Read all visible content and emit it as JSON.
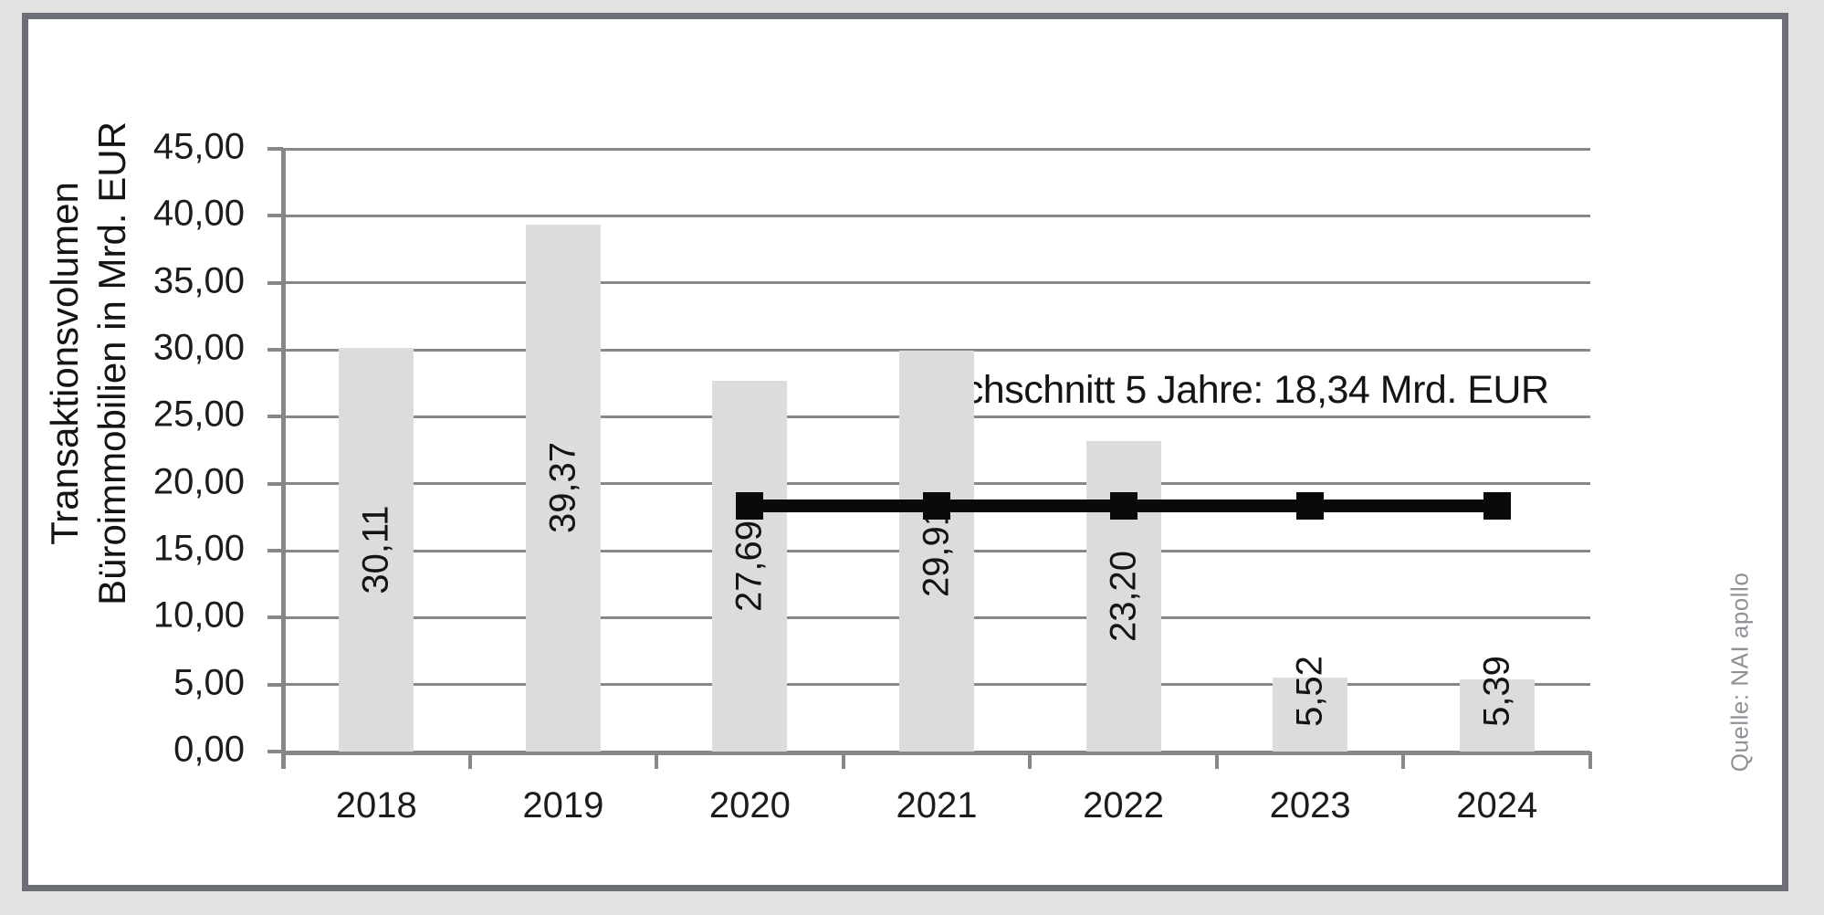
{
  "page": {
    "background_color": "#e2e2e0",
    "frame_border_color": "#6c7076",
    "plot_background": "#ffffff"
  },
  "chart_data": {
    "type": "bar",
    "title": "",
    "categories": [
      "2018",
      "2019",
      "2020",
      "2021",
      "2022",
      "2023",
      "2024"
    ],
    "series": [
      {
        "name": "Transaktionsvolumen Büroimmobilien",
        "type": "bar",
        "values": [
          30.11,
          39.37,
          27.69,
          29.91,
          23.2,
          5.52,
          5.39
        ],
        "labels": [
          "30,11",
          "39,37",
          "27,69",
          "29,91",
          "23,20",
          "5,52",
          "5,39"
        ],
        "color": "#dcdcdd",
        "label_rotation": -90
      },
      {
        "name": "Durchschnitt 5 Jahre",
        "type": "line",
        "value": 18.34,
        "span_categories": [
          "2020",
          "2021",
          "2022",
          "2023",
          "2024"
        ],
        "color": "#0a0a0a",
        "marker": "square"
      }
    ],
    "annotation": "Durchschnitt 5 Jahre: 18,34 Mrd. EUR",
    "ylabel_line1": "Transaktionsvolumen",
    "ylabel_line2": "Büroimmobilien in Mrd. EUR",
    "xlabel": "",
    "ylim": [
      0,
      45
    ],
    "ytick_step": 5,
    "yticks": [
      "0,00",
      "5,00",
      "10,00",
      "15,00",
      "20,00",
      "25,00",
      "30,00",
      "35,00",
      "40,00",
      "45,00"
    ],
    "grid": true,
    "gridline_color": "#878787",
    "legend_position": "none",
    "source": "Quelle: NAI apollo"
  }
}
